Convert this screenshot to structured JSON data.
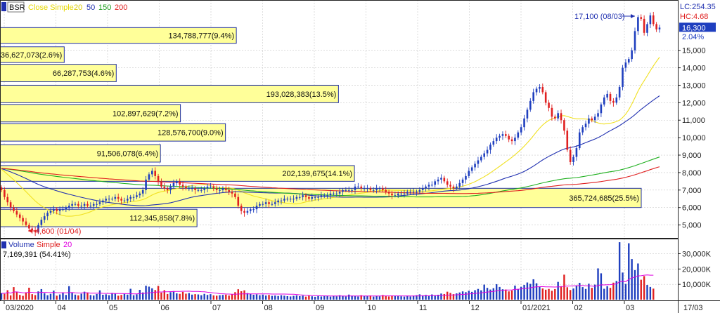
{
  "chart_data": [
    {
      "type": "candlestick",
      "symbol": "BSR",
      "legend": {
        "ma_label": "Close Simple",
        "periods": [
          "20",
          "50",
          "150",
          "200"
        ]
      },
      "colors": {
        "up": "#1f3fbf",
        "down": "#e02020",
        "ma20": "#f0e020",
        "ma50": "#2030b0",
        "ma150": "#20b020",
        "ma200": "#e02020",
        "vp_fill": "#ffff99",
        "vp_border": "#2030a0"
      },
      "ylim": [
        4300,
        17800
      ],
      "y_ticks": [
        "5,000",
        "6,000",
        "7,000",
        "8,000",
        "9,000",
        "10,000",
        "11,000",
        "12,000",
        "13,000",
        "14,000",
        "15,000"
      ],
      "x_ticks": [
        "03/2020",
        "04",
        "05",
        "06",
        "07",
        "08",
        "09",
        "10",
        "11",
        "12",
        "01/2021",
        "02",
        "03"
      ],
      "last_x_label": "17/03",
      "lc_label": "LC:254.35",
      "hc_label": "HC:4.68",
      "last_price": "16,300",
      "last_change": "2.04%",
      "annotations": {
        "high": "17,100 (08/03)",
        "low": "4,600 (01/04)"
      },
      "closes": [
        7000,
        6600,
        6300,
        6000,
        5800,
        5600,
        5400,
        5200,
        5000,
        4800,
        4700,
        4600,
        5000,
        5300,
        5500,
        5700,
        5800,
        5900,
        5800,
        5900,
        5900,
        6000,
        6100,
        6200,
        6200,
        6100,
        6100,
        6200,
        6100,
        6100,
        6200,
        6200,
        6300,
        6400,
        6500,
        6500,
        6500,
        6600,
        6500,
        6400,
        6400,
        6500,
        6600,
        6600,
        6700,
        6800,
        7000,
        7600,
        7900,
        8100,
        7800,
        7500,
        7200,
        7100,
        7000,
        7200,
        7400,
        7500,
        7300,
        7200,
        7100,
        7100,
        7100,
        7000,
        7000,
        7000,
        7100,
        7200,
        7200,
        7100,
        7000,
        7000,
        7100,
        7000,
        6900,
        6800,
        6600,
        6100,
        5800,
        5700,
        5800,
        5900,
        5900,
        6100,
        6200,
        6200,
        6300,
        6200,
        6200,
        6300,
        6400,
        6400,
        6500,
        6500,
        6500,
        6500,
        6600,
        6600,
        6700,
        6600,
        6500,
        6600,
        6600,
        6600,
        6700,
        6700,
        6700,
        6800,
        6800,
        6800,
        6900,
        7000,
        7000,
        7000,
        7000,
        7200,
        7200,
        7100,
        7100,
        7100,
        7000,
        7000,
        7100,
        7100,
        7000,
        6900,
        6800,
        6700,
        6700,
        6800,
        6800,
        6800,
        6900,
        6900,
        6900,
        6900,
        7000,
        7100,
        7200,
        7300,
        7300,
        7500,
        7600,
        7700,
        7500,
        7300,
        7200,
        7100,
        7200,
        7400,
        7600,
        7800,
        8100,
        8300,
        8500,
        8700,
        8900,
        9100,
        9300,
        9600,
        9800,
        10000,
        10100,
        10200,
        10100,
        9900,
        9800,
        10000,
        10300,
        10600,
        11100,
        11600,
        12100,
        12600,
        12800,
        12900,
        12600,
        12000,
        11700,
        11200,
        11100,
        11400,
        11000,
        10400,
        9300,
        8600,
        8900,
        9400,
        10300,
        10600,
        10800,
        11100,
        11000,
        11200,
        11400,
        11900,
        12300,
        12500,
        12100,
        12000,
        12300,
        12900,
        14000,
        14300,
        14500,
        15000,
        16100,
        16900,
        16800,
        16000,
        16500,
        17000,
        16500,
        16200,
        16300
      ],
      "volume": {
        "label": "Volume",
        "ma_label": "Simple",
        "ma_period": "20",
        "last_value": "7,169,391 (54.41%)",
        "ticks": [
          "10,000K",
          "20,000K",
          "30,000K"
        ],
        "ylim": [
          0,
          38000
        ],
        "values_k": [
          4200,
          3800,
          6200,
          2800,
          8200,
          5200,
          3100,
          2500,
          4800,
          7800,
          3600,
          3000,
          5400,
          6900,
          4200,
          2900,
          3800,
          5900,
          2600,
          3400,
          4700,
          3100,
          8800,
          4400,
          3300,
          2800,
          3900,
          5200,
          4600,
          3000,
          2700,
          3700,
          6100,
          3200,
          3500,
          2900,
          4400,
          3900,
          2600,
          3100,
          3800,
          3300,
          7100,
          2900,
          3500,
          6400,
          4700,
          9100,
          8500,
          7400,
          6300,
          9000,
          4600,
          6200,
          3700,
          4900,
          5600,
          4100,
          3800,
          5100,
          3900,
          4300,
          3300,
          3600,
          3400,
          2900,
          3800,
          3100,
          3600,
          2800,
          2600,
          2900,
          3100,
          3300,
          2700,
          3600,
          4900,
          6800,
          5500,
          6100,
          4300,
          3900,
          3200,
          3500,
          2900,
          3300,
          2700,
          3100,
          2500,
          2700,
          2400,
          2900,
          2600,
          2300,
          2100,
          2500,
          2800,
          2300,
          2600,
          2000,
          2700,
          2200,
          1900,
          2400,
          2100,
          2600,
          2300,
          2000,
          2500,
          2200,
          2900,
          2400,
          2100,
          3300,
          2600,
          2400,
          2100,
          2900,
          2500,
          2300,
          2700,
          2000,
          2400,
          2200,
          3000,
          2500,
          2100,
          2700,
          2300,
          2400,
          2200,
          2000,
          2400,
          2100,
          2600,
          2900,
          3500,
          2800,
          3100,
          2700,
          3400,
          2900,
          3200,
          4000,
          3700,
          5200,
          4400,
          3600,
          4100,
          4700,
          5400,
          4900,
          5800,
          5100,
          6200,
          7000,
          6100,
          9800,
          7700,
          6600,
          7500,
          10100,
          8300,
          6800,
          6600,
          5400,
          6000,
          9200,
          7000,
          8400,
          9600,
          11200,
          10300,
          13300,
          10700,
          8400,
          7300,
          6500,
          7000,
          5800,
          6900,
          11600,
          8800,
          16300,
          8100,
          6300,
          7300,
          9300,
          11000,
          8200,
          7000,
          10400,
          7700,
          9800,
          20400,
          17200,
          7100,
          8800,
          7700,
          11100,
          12200,
          37500,
          17700,
          10300,
          36800,
          26500,
          19300,
          23600,
          13000,
          15400,
          9600,
          8300,
          7200
        ]
      },
      "volume_profile": [
        {
          "label": "134,788,777(9.4%)",
          "value": 134788777,
          "price_low": 15400,
          "price_high": 16300
        },
        {
          "label": "36,627,073(2.6%)",
          "value": 36627073,
          "price_low": 14300,
          "price_high": 15200
        },
        {
          "label": "66,287,753(4.6%)",
          "value": 66287753,
          "price_low": 13200,
          "price_high": 14200
        },
        {
          "label": "193,028,383(13.5%)",
          "value": 193028383,
          "price_low": 12000,
          "price_high": 13000
        },
        {
          "label": "102,897,629(7.2%)",
          "value": 102897629,
          "price_low": 10900,
          "price_high": 11900
        },
        {
          "label": "128,576,700(9.0%)",
          "value": 128576700,
          "price_low": 9800,
          "price_high": 10800
        },
        {
          "label": "91,506,078(6.4%)",
          "value": 91506078,
          "price_low": 8600,
          "price_high": 9600
        },
        {
          "label": "202,139,675(14.1%)",
          "value": 202139675,
          "price_low": 7500,
          "price_high": 8400
        },
        {
          "label": "365,724,685(25.5%)",
          "value": 365724685,
          "price_low": 6000,
          "price_high": 7100
        },
        {
          "label": "112,345,858(7.8%)",
          "value": 112345858,
          "price_low": 4900,
          "price_high": 5900
        }
      ]
    }
  ]
}
